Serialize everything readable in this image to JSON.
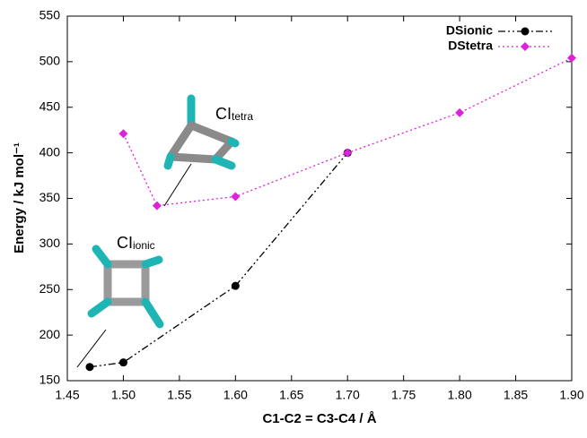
{
  "chart_data": {
    "type": "line",
    "x_label": "C1-C2 = C3-C4 / Å",
    "y_label": "Energy / kJ mol⁻¹",
    "annotations": [
      {
        "base": "CI",
        "sub": "tetra"
      },
      {
        "base": "CI",
        "sub": "ionic"
      }
    ],
    "legend": "upper right",
    "series": [
      {
        "name": "DSionic",
        "color": "#000000",
        "marker": "circle",
        "dash": "8,3,2,3,2,3",
        "x": [
          1.47,
          1.5,
          1.6,
          1.7
        ],
        "values": [
          165,
          170,
          254,
          400
        ]
      },
      {
        "name": "DStetra",
        "color": "#dd22dd",
        "marker": "diamond",
        "dash": "2,3",
        "x": [
          1.5,
          1.53,
          1.6,
          1.7,
          1.8,
          1.9
        ],
        "values": [
          421,
          342,
          352,
          400,
          444,
          504
        ]
      }
    ],
    "xlim": [
      1.45,
      1.9
    ],
    "xticks": [
      1.45,
      {
        "value": 1.5,
        "label": "1.50"
      },
      1.55,
      {
        "value": 1.6,
        "label": "1.60"
      },
      1.65,
      {
        "value": 1.7,
        "label": "1.70"
      },
      1.75,
      {
        "value": 1.8,
        "label": "1.80"
      },
      1.85,
      {
        "value": 1.9,
        "label": "1.90"
      }
    ],
    "ylim": [
      150,
      550
    ],
    "yticks": [
      150,
      200,
      250,
      300,
      350,
      400,
      450,
      500,
      550
    ]
  }
}
